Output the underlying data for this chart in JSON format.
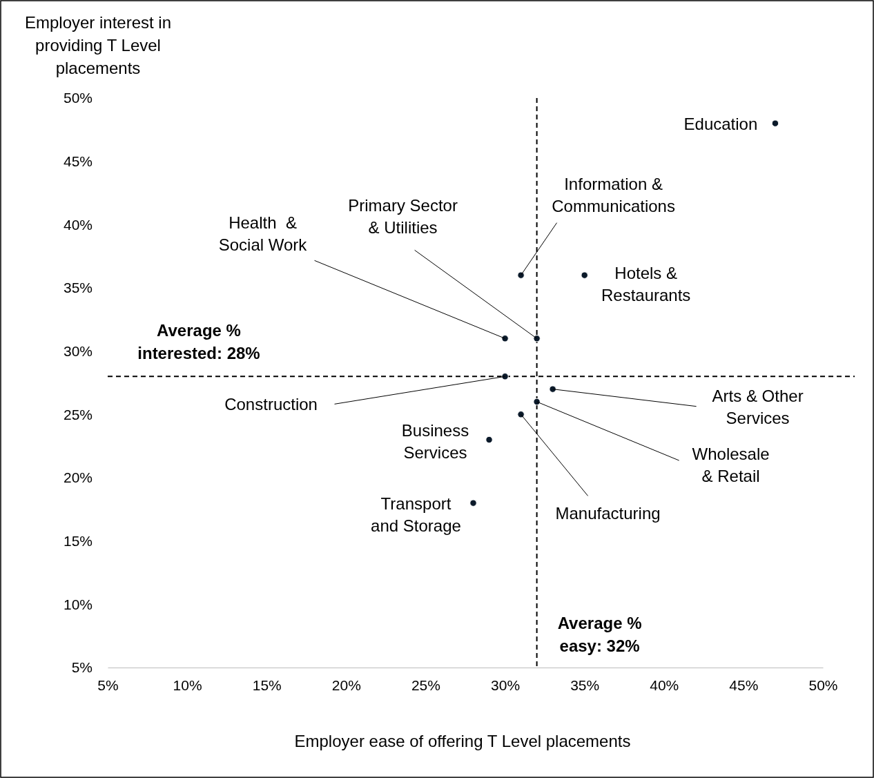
{
  "chart_data": {
    "type": "scatter",
    "xlabel": "Employer ease of offering T Level placements",
    "ylabel": "Employer interest in providing T Level placements",
    "x": [
      47,
      31,
      35,
      30,
      32,
      30,
      33,
      32,
      31,
      29,
      28
    ],
    "series": [
      {
        "color": "#0b1a2a",
        "values": [
          48,
          36,
          36,
          31,
          31,
          28,
          27,
          26,
          25,
          23,
          18
        ]
      }
    ],
    "marker": "circle",
    "grid": false,
    "xlim": [
      5,
      50
    ],
    "ylim": [
      5,
      50
    ],
    "xticks": [
      {
        "value": 5,
        "label": "5%"
      },
      {
        "value": 10,
        "label": "10%"
      },
      {
        "value": 15,
        "label": "15%"
      },
      {
        "value": 20,
        "label": "20%"
      },
      {
        "value": 25,
        "label": "25%"
      },
      {
        "value": 30,
        "label": "30%"
      },
      {
        "value": 35,
        "label": "35%"
      },
      {
        "value": 40,
        "label": "40%"
      },
      {
        "value": 45,
        "label": "45%"
      },
      {
        "value": 50,
        "label": "50%"
      }
    ],
    "yticks": [
      {
        "value": 5,
        "label": "5%"
      },
      {
        "value": 10,
        "label": "10%"
      },
      {
        "value": 15,
        "label": "15%"
      },
      {
        "value": 20,
        "label": "20%"
      },
      {
        "value": 25,
        "label": "25%"
      },
      {
        "value": 30,
        "label": "30%"
      },
      {
        "value": 35,
        "label": "35%"
      },
      {
        "value": 40,
        "label": "40%"
      },
      {
        "value": 45,
        "label": "45%"
      },
      {
        "value": 50,
        "label": "50%"
      }
    ],
    "ref_lines": [
      {
        "axis": "x",
        "value": 32,
        "label": "Average % easy: 32%",
        "line_style": "dashed"
      },
      {
        "axis": "y",
        "value": 28,
        "label": "Average % interested: 28%",
        "line_style": "dashed"
      }
    ],
    "annotations": [
      {
        "text": "Education",
        "x": 47,
        "y": 48
      },
      {
        "text": "Information & Communications",
        "x": 31,
        "y": 36
      },
      {
        "text": "Hotels & Restaurants",
        "x": 35,
        "y": 36
      },
      {
        "text": "Health  & Social Work",
        "x": 30,
        "y": 31
      },
      {
        "text": "Primary Sector & Utilities",
        "x": 32,
        "y": 31
      },
      {
        "text": "Construction",
        "x": 30,
        "y": 28
      },
      {
        "text": "Arts & Other Services",
        "x": 33,
        "y": 27
      },
      {
        "text": "Wholesale & Retail",
        "x": 32,
        "y": 26
      },
      {
        "text": "Manufacturing",
        "x": 31,
        "y": 25
      },
      {
        "text": "Business Services",
        "x": 29,
        "y": 23
      },
      {
        "text": "Transport and Storage",
        "x": 28,
        "y": 18
      }
    ]
  }
}
